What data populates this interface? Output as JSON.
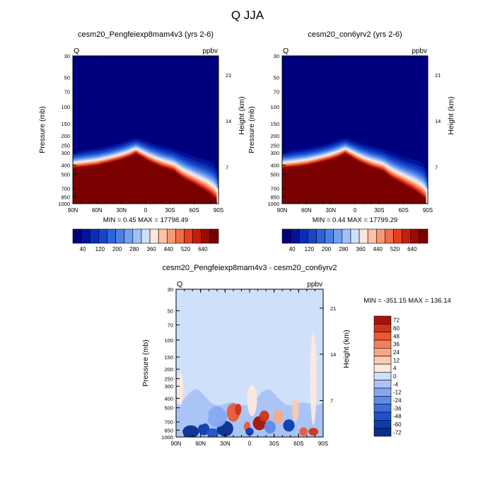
{
  "page": {
    "title": "Q JJA"
  },
  "colors": {
    "abs_levels": [
      "#00007f",
      "#001399",
      "#0b2db5",
      "#1646c8",
      "#2e62d9",
      "#4a80e6",
      "#739fef",
      "#a2c0f6",
      "#cfe0fa",
      "#fde7dc",
      "#fbc2a6",
      "#f79a74",
      "#f06d45",
      "#e24120",
      "#c81d0c",
      "#9d0a05",
      "#7a0000"
    ],
    "diff_levels": [
      "#062e8a",
      "#0c3dae",
      "#1d52cc",
      "#3b6ddc",
      "#5f8ae7",
      "#87a8ef",
      "#aac4f5",
      "#cfe0fb",
      "#fde8dc",
      "#fccbb1",
      "#f9a684",
      "#f47f5a",
      "#e95a34",
      "#cf3418",
      "#a81207"
    ]
  },
  "chart_data": [
    {
      "type": "heatmap",
      "title": "cesm20_Pengfeiexp8mam4v3 (yrs 2-6)",
      "left_label": "Q",
      "right_label": "ppbv",
      "ylabel": "Pressure (mb)",
      "y2label": "Height (km)",
      "x_ticks": [
        "90N",
        "60N",
        "30N",
        "0",
        "30S",
        "60S",
        "90S"
      ],
      "y_ticks": [
        "30",
        "50",
        "70",
        "100",
        "150",
        "200",
        "250",
        "300",
        "400",
        "500",
        "700",
        "850",
        "1000"
      ],
      "y_tick_values": [
        30,
        50,
        70,
        100,
        150,
        200,
        250,
        300,
        400,
        500,
        700,
        850,
        1000
      ],
      "y2_ticks": [
        "21",
        "14",
        "7"
      ],
      "y2_tick_pressures": [
        47,
        140,
        421
      ],
      "ylim": [
        1000,
        30
      ],
      "xlim": [
        90,
        -90
      ],
      "min_max": "MIN =   0.45  MAX = 17798.49",
      "colorbar_labels": [
        "40",
        "120",
        "200",
        "280",
        "360",
        "440",
        "520",
        "640"
      ],
      "surface_pressure": [
        [
          90,
          265
        ],
        [
          75,
          250
        ],
        [
          60,
          240
        ],
        [
          45,
          228
        ],
        [
          30,
          210
        ],
        [
          18,
          192
        ],
        [
          10,
          190
        ],
        [
          0,
          200
        ],
        [
          -10,
          212
        ],
        [
          -20,
          222
        ],
        [
          -30,
          232
        ],
        [
          -45,
          250
        ],
        [
          -60,
          275
        ],
        [
          -75,
          290
        ],
        [
          -85,
          310
        ],
        [
          -90,
          400
        ]
      ],
      "moist_top": [
        [
          90,
          430
        ],
        [
          75,
          420
        ],
        [
          60,
          405
        ],
        [
          45,
          378
        ],
        [
          30,
          352
        ],
        [
          20,
          330
        ],
        [
          12,
          305
        ],
        [
          5,
          330
        ],
        [
          -5,
          370
        ],
        [
          -20,
          420
        ],
        [
          -35,
          460
        ],
        [
          -45,
          540
        ],
        [
          -60,
          630
        ],
        [
          -72,
          720
        ],
        [
          -80,
          800
        ],
        [
          -87,
          900
        ],
        [
          -90,
          1000
        ]
      ]
    },
    {
      "type": "heatmap",
      "title": "cesm20_con6yrv2 (yrs 2-6)",
      "left_label": "Q",
      "right_label": "ppbv",
      "ylabel": "Pressure (mb)",
      "y2label": "Height (km)",
      "x_ticks": [
        "90N",
        "60N",
        "30N",
        "0",
        "30S",
        "60S",
        "90S"
      ],
      "y_ticks": [
        "30",
        "50",
        "70",
        "100",
        "150",
        "200",
        "250",
        "300",
        "400",
        "500",
        "700",
        "850",
        "1000"
      ],
      "y_tick_values": [
        30,
        50,
        70,
        100,
        150,
        200,
        250,
        300,
        400,
        500,
        700,
        850,
        1000
      ],
      "y2_ticks": [
        "21",
        "14",
        "7"
      ],
      "y2_tick_pressures": [
        47,
        140,
        421
      ],
      "ylim": [
        1000,
        30
      ],
      "xlim": [
        90,
        -90
      ],
      "min_max": "MIN =   0.44  MAX = 17799.29",
      "colorbar_labels": [
        "40",
        "120",
        "200",
        "280",
        "360",
        "440",
        "520",
        "640"
      ],
      "surface_pressure": [
        [
          90,
          265
        ],
        [
          75,
          250
        ],
        [
          60,
          240
        ],
        [
          45,
          228
        ],
        [
          30,
          210
        ],
        [
          18,
          192
        ],
        [
          10,
          190
        ],
        [
          0,
          200
        ],
        [
          -10,
          212
        ],
        [
          -20,
          222
        ],
        [
          -30,
          232
        ],
        [
          -45,
          250
        ],
        [
          -60,
          275
        ],
        [
          -75,
          290
        ],
        [
          -85,
          310
        ],
        [
          -90,
          400
        ]
      ],
      "moist_top": [
        [
          90,
          430
        ],
        [
          75,
          420
        ],
        [
          60,
          405
        ],
        [
          45,
          378
        ],
        [
          30,
          352
        ],
        [
          20,
          330
        ],
        [
          12,
          305
        ],
        [
          5,
          330
        ],
        [
          -5,
          370
        ],
        [
          -20,
          420
        ],
        [
          -35,
          460
        ],
        [
          -45,
          540
        ],
        [
          -60,
          630
        ],
        [
          -72,
          720
        ],
        [
          -80,
          800
        ],
        [
          -87,
          900
        ],
        [
          -90,
          1000
        ]
      ]
    },
    {
      "type": "heatmap",
      "title": "cesm20_Pengfeiexp8mam4v3 - cesm20_con6yrv2",
      "left_label": "Q",
      "right_label": "ppbv",
      "ylabel": "Pressure (mb)",
      "y2label": "Height (km)",
      "x_ticks": [
        "90N",
        "60N",
        "30N",
        "0",
        "30S",
        "60S",
        "90S"
      ],
      "y_ticks": [
        "30",
        "50",
        "70",
        "100",
        "150",
        "200",
        "250",
        "300",
        "400",
        "500",
        "700",
        "850",
        "1000"
      ],
      "y_tick_values": [
        30,
        50,
        70,
        100,
        150,
        200,
        250,
        300,
        400,
        500,
        700,
        850,
        1000
      ],
      "y2_ticks": [
        "21",
        "14",
        "7"
      ],
      "y2_tick_pressures": [
        47,
        140,
        421
      ],
      "ylim": [
        1000,
        30
      ],
      "xlim": [
        90,
        -90
      ],
      "min_max": "MIN = -351.15  MAX = 136.14",
      "colorbar_labels": [
        "72",
        "60",
        "48",
        "36",
        "24",
        "12",
        "4",
        "0",
        "-4",
        "-12",
        "-24",
        "-36",
        "-48",
        "-60",
        "-72"
      ],
      "anomalies": [
        {
          "lat": 72,
          "p": 880,
          "rlat": 10,
          "rp": 130,
          "level": 0
        },
        {
          "lat": 56,
          "p": 830,
          "rlat": 7,
          "rp": 120,
          "level": 1
        },
        {
          "lat": 45,
          "p": 900,
          "rlat": 8,
          "rp": 90,
          "level": 2
        },
        {
          "lat": 30,
          "p": 820,
          "rlat": 10,
          "rp": 150,
          "level": 0
        },
        {
          "lat": 40,
          "p": 620,
          "rlat": 12,
          "rp": 150,
          "level": 5
        },
        {
          "lat": 60,
          "p": 600,
          "rlat": 10,
          "rp": 130,
          "level": 6
        },
        {
          "lat": 20,
          "p": 560,
          "rlat": 8,
          "rp": 120,
          "level": 12
        },
        {
          "lat": 14,
          "p": 520,
          "rlat": 4,
          "rp": 70,
          "level": 13
        },
        {
          "lat": 3,
          "p": 780,
          "rlat": 4,
          "rp": 90,
          "level": 12
        },
        {
          "lat": 0,
          "p": 880,
          "rlat": 5,
          "rp": 80,
          "level": 1
        },
        {
          "lat": -12,
          "p": 720,
          "rlat": 8,
          "rp": 120,
          "level": 14
        },
        {
          "lat": -18,
          "p": 610,
          "rlat": 6,
          "rp": 80,
          "level": 13
        },
        {
          "lat": -25,
          "p": 790,
          "rlat": 7,
          "rp": 120,
          "level": 4
        },
        {
          "lat": -35,
          "p": 620,
          "rlat": 6,
          "rp": 100,
          "level": 10
        },
        {
          "lat": -48,
          "p": 760,
          "rlat": 7,
          "rp": 110,
          "level": 1
        },
        {
          "lat": -56,
          "p": 520,
          "rlat": 4,
          "rp": 140,
          "level": 9
        },
        {
          "lat": -66,
          "p": 880,
          "rlat": 5,
          "rp": 90,
          "level": 12
        },
        {
          "lat": -78,
          "p": 880,
          "rlat": 6,
          "rp": 80,
          "level": 13
        },
        {
          "lat": -78,
          "p": 250,
          "rlat": 4,
          "rp": 200,
          "level": 8
        },
        {
          "lat": -70,
          "p": 90,
          "rlat": 4,
          "rp": 200,
          "level": 8
        },
        {
          "lat": -3,
          "p": 420,
          "rlat": 6,
          "rp": 150,
          "level": 8
        },
        {
          "lat": 85,
          "p": 320,
          "rlat": 4,
          "rp": 120,
          "level": 8
        }
      ]
    }
  ]
}
